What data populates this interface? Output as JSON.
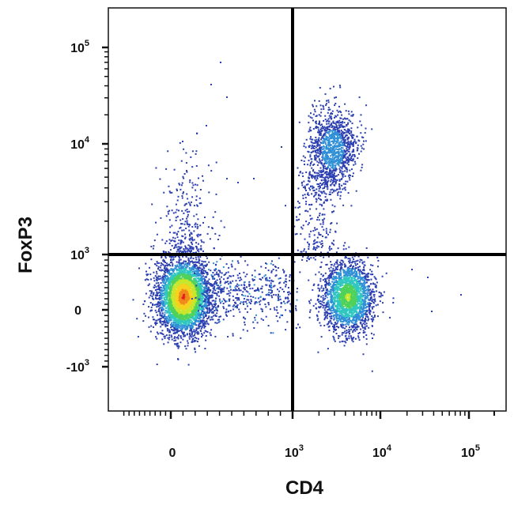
{
  "chart_data": {
    "type": "scatter",
    "subtype": "flow-cytometry-density-dot-plot",
    "xlabel": "CD4",
    "ylabel": "FoxP3",
    "x_scale": "biexponential",
    "y_scale": "biexponential",
    "xlim": [
      -1000,
      200000
    ],
    "ylim": [
      -2500,
      200000
    ],
    "x_ticks": [
      {
        "base": "0",
        "exp": "",
        "value": 0
      },
      {
        "base": "10",
        "exp": "3",
        "value": 1000
      },
      {
        "base": "10",
        "exp": "4",
        "value": 10000
      },
      {
        "base": "10",
        "exp": "5",
        "value": 100000
      }
    ],
    "y_ticks": [
      {
        "base": "-10",
        "exp": "3",
        "value": -1000
      },
      {
        "base": "0",
        "exp": "",
        "value": 0
      },
      {
        "base": "10",
        "exp": "3",
        "value": 1000
      },
      {
        "base": "10",
        "exp": "4",
        "value": 10000
      },
      {
        "base": "10",
        "exp": "5",
        "value": 100000
      }
    ],
    "quadrant_gate": {
      "x": 1000,
      "y": 1000
    },
    "grid": false,
    "legend": "none",
    "color_scale": [
      "#2c3fb0",
      "#2f8fd6",
      "#31c7c0",
      "#4fd15a",
      "#c8e62c",
      "#f5d21f",
      "#f08a1c",
      "#e02020"
    ],
    "populations": [
      {
        "name": "CD4-FoxP3-",
        "cx": 100,
        "cy": 250,
        "relative_density": 1.0
      },
      {
        "name": "CD4+FoxP3-",
        "cx": 4200,
        "cy": 250,
        "relative_density": 0.55
      },
      {
        "name": "CD4+FoxP3+",
        "cx": 2800,
        "cy": 9000,
        "relative_density": 0.3
      }
    ]
  }
}
